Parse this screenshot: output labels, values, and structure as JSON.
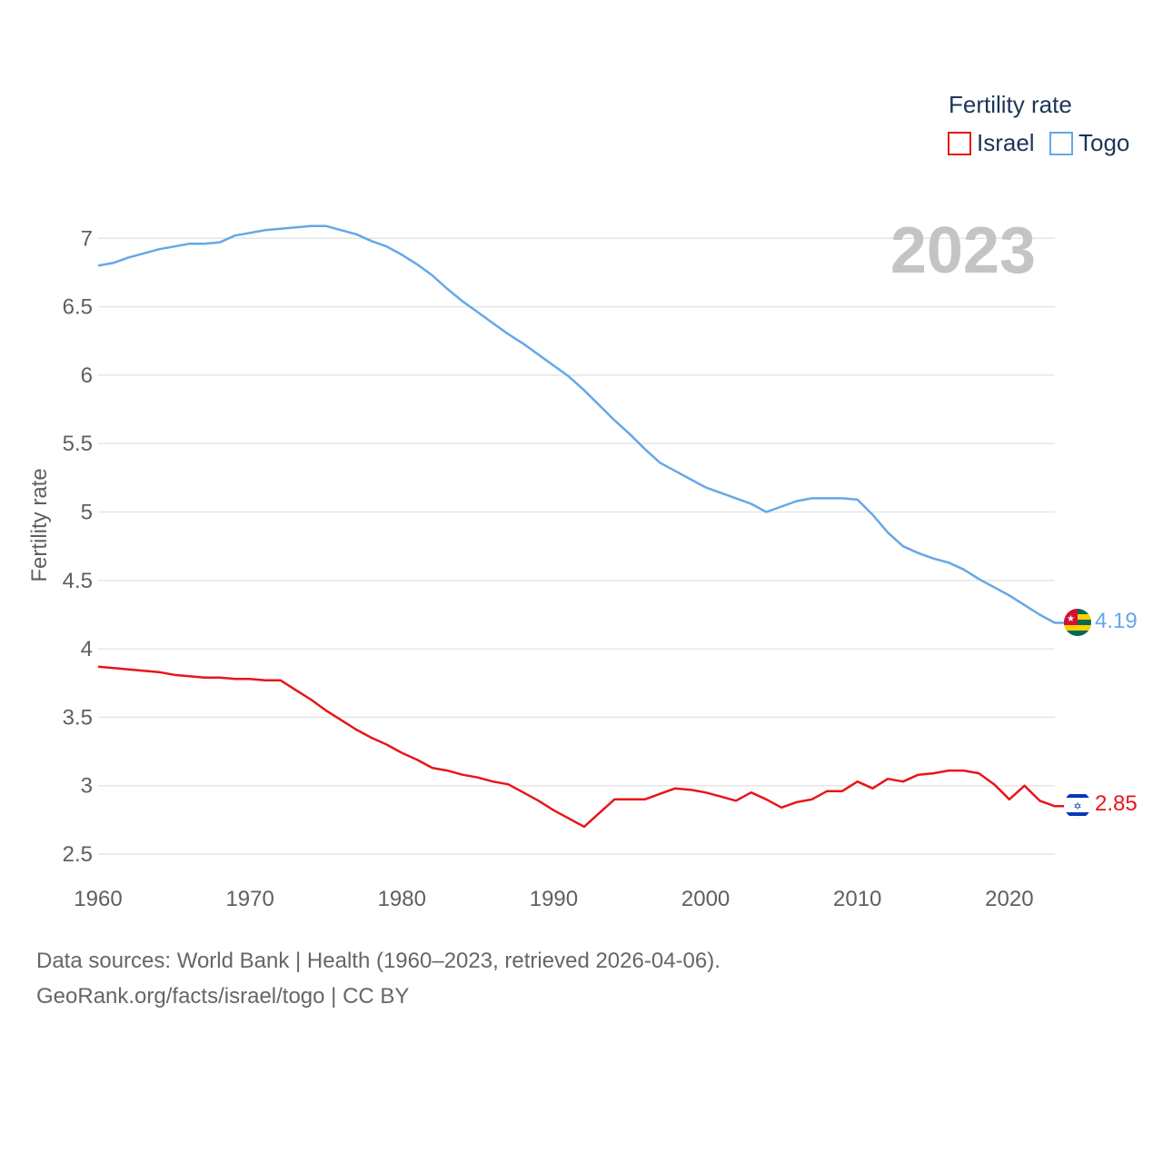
{
  "chart_data": {
    "type": "line",
    "title": "Fertility rate",
    "ylabel": "Fertility rate",
    "xlabel": "",
    "year_label": "2023",
    "xlim": [
      1960,
      2023
    ],
    "ylim": [
      2.5,
      7.3
    ],
    "x_ticks": [
      1960,
      1970,
      1980,
      1990,
      2000,
      2010,
      2020
    ],
    "y_ticks": [
      2.5,
      3,
      3.5,
      4,
      4.5,
      5,
      5.5,
      6,
      6.5,
      7
    ],
    "x": [
      1960,
      1961,
      1962,
      1963,
      1964,
      1965,
      1966,
      1967,
      1968,
      1969,
      1970,
      1971,
      1972,
      1973,
      1974,
      1975,
      1976,
      1977,
      1978,
      1979,
      1980,
      1981,
      1982,
      1983,
      1984,
      1985,
      1986,
      1987,
      1988,
      1989,
      1990,
      1991,
      1992,
      1993,
      1994,
      1995,
      1996,
      1997,
      1998,
      1999,
      2000,
      2001,
      2002,
      2003,
      2004,
      2005,
      2006,
      2007,
      2008,
      2009,
      2010,
      2011,
      2012,
      2013,
      2014,
      2015,
      2016,
      2017,
      2018,
      2019,
      2020,
      2021,
      2022,
      2023
    ],
    "series": [
      {
        "name": "Israel",
        "color": "#e8151a",
        "end_label": "2.85",
        "flag_icon": "israel-flag-icon",
        "values": [
          3.87,
          3.86,
          3.85,
          3.84,
          3.83,
          3.81,
          3.8,
          3.79,
          3.79,
          3.78,
          3.78,
          3.77,
          3.77,
          3.7,
          3.63,
          3.55,
          3.48,
          3.41,
          3.35,
          3.3,
          3.24,
          3.19,
          3.13,
          3.11,
          3.08,
          3.06,
          3.03,
          3.01,
          2.95,
          2.89,
          2.82,
          2.76,
          2.7,
          2.8,
          2.9,
          2.9,
          2.9,
          2.94,
          2.98,
          2.97,
          2.95,
          2.92,
          2.89,
          2.95,
          2.9,
          2.84,
          2.88,
          2.9,
          2.96,
          2.96,
          3.03,
          2.98,
          3.05,
          3.03,
          3.08,
          3.09,
          3.11,
          3.11,
          3.09,
          3.01,
          2.9,
          3.0,
          2.89,
          2.85
        ]
      },
      {
        "name": "Togo",
        "color": "#64a8e8",
        "end_label": "4.19",
        "flag_icon": "togo-flag-icon",
        "values": [
          6.8,
          6.82,
          6.86,
          6.89,
          6.92,
          6.94,
          6.96,
          6.96,
          6.97,
          7.02,
          7.04,
          7.06,
          7.07,
          7.08,
          7.09,
          7.09,
          7.06,
          7.03,
          6.98,
          6.94,
          6.88,
          6.81,
          6.73,
          6.63,
          6.54,
          6.46,
          6.38,
          6.3,
          6.23,
          6.15,
          6.07,
          5.99,
          5.89,
          5.78,
          5.67,
          5.57,
          5.46,
          5.36,
          5.3,
          5.24,
          5.18,
          5.14,
          5.1,
          5.06,
          5.0,
          5.04,
          5.08,
          5.1,
          5.1,
          5.1,
          5.09,
          4.98,
          4.85,
          4.75,
          4.7,
          4.66,
          4.63,
          4.58,
          4.51,
          4.45,
          4.39,
          4.32,
          4.25,
          4.19
        ]
      }
    ],
    "legend_position": "top-right"
  },
  "footer": {
    "line1": "Data sources: World Bank | Health (1960–2023, retrieved 2026-04-06).",
    "line2": "GeoRank.org/facts/israel/togo | CC BY"
  }
}
